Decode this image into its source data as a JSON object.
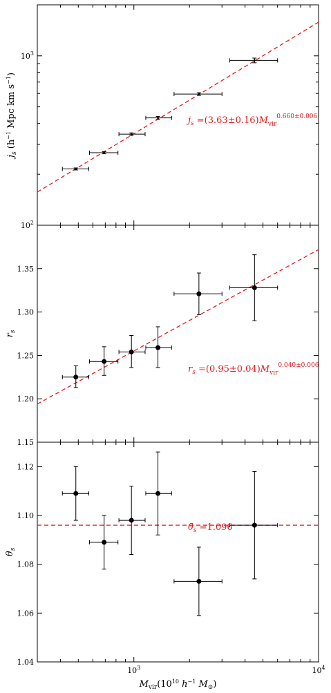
{
  "chart_data": [
    {
      "type": "scatter",
      "panel": "top",
      "xscale": "log",
      "yscale": "log",
      "xlim": [
        300,
        10000
      ],
      "ylim": [
        100,
        2000
      ],
      "ylabel": "j_s (h^{-1} Mpc km s^{-1})",
      "yticks": [
        {
          "v": 100,
          "base": "10",
          "exp": "2"
        },
        {
          "v": 1000,
          "base": "10",
          "exp": "3"
        }
      ],
      "points": [
        {
          "x": 485,
          "y": 215,
          "xlo": 410,
          "xhi": 570,
          "ylo": 212,
          "yhi": 218
        },
        {
          "x": 690,
          "y": 268,
          "xlo": 575,
          "xhi": 820,
          "ylo": 264,
          "yhi": 272
        },
        {
          "x": 970,
          "y": 345,
          "xlo": 830,
          "xhi": 1150,
          "ylo": 339,
          "yhi": 351
        },
        {
          "x": 1350,
          "y": 430,
          "xlo": 1160,
          "xhi": 1600,
          "ylo": 421,
          "yhi": 439
        },
        {
          "x": 2250,
          "y": 595,
          "xlo": 1650,
          "xhi": 3000,
          "ylo": 584,
          "yhi": 606
        },
        {
          "x": 4500,
          "y": 940,
          "xlo": 3300,
          "xhi": 6000,
          "ylo": 910,
          "yhi": 970
        }
      ],
      "fit": {
        "x": [
          300,
          10000
        ],
        "y": [
          157,
          1580
        ],
        "color": "#e41a1c"
      },
      "annotation": "j_s =(3.63±0.16)M_vir^{0.660±0.006}"
    },
    {
      "type": "scatter",
      "panel": "middle",
      "xscale": "log",
      "xlim": [
        300,
        10000
      ],
      "ylim": [
        1.15,
        1.4
      ],
      "ylabel": "r_s",
      "yticks": [
        "1.15",
        "1.20",
        "1.25",
        "1.30",
        "1.35"
      ],
      "points": [
        {
          "x": 485,
          "y": 1.225,
          "xlo": 410,
          "xhi": 570,
          "ylo": 1.213,
          "yhi": 1.238
        },
        {
          "x": 690,
          "y": 1.243,
          "xlo": 575,
          "xhi": 820,
          "ylo": 1.227,
          "yhi": 1.26
        },
        {
          "x": 970,
          "y": 1.254,
          "xlo": 830,
          "xhi": 1150,
          "ylo": 1.236,
          "yhi": 1.273
        },
        {
          "x": 1350,
          "y": 1.259,
          "xlo": 1160,
          "xhi": 1600,
          "ylo": 1.236,
          "yhi": 1.283
        },
        {
          "x": 2250,
          "y": 1.321,
          "xlo": 1650,
          "xhi": 3000,
          "ylo": 1.297,
          "yhi": 1.345
        },
        {
          "x": 4500,
          "y": 1.328,
          "xlo": 3300,
          "xhi": 6000,
          "ylo": 1.29,
          "yhi": 1.366
        }
      ],
      "fit": {
        "x": [
          300,
          10000
        ],
        "y": [
          1.194,
          1.372
        ],
        "color": "#e41a1c"
      },
      "annotation": "r_s =(0.95±0.04)M_vir^{0.040±0.006}"
    },
    {
      "type": "scatter",
      "panel": "bottom",
      "xscale": "log",
      "xlim": [
        300,
        10000
      ],
      "ylim": [
        1.04,
        1.13
      ],
      "ylabel": "θ_s",
      "xlabel": "M_vir(10^{10} h^{-1} M_⊙)",
      "yticks": [
        "1.04",
        "1.06",
        "1.08",
        "1.10",
        "1.12"
      ],
      "xticks": [
        {
          "v": 1000,
          "base": "10",
          "exp": "3"
        },
        {
          "v": 10000,
          "base": "10",
          "exp": "4"
        }
      ],
      "points": [
        {
          "x": 485,
          "y": 1.109,
          "xlo": 410,
          "xhi": 570,
          "ylo": 1.098,
          "yhi": 1.12
        },
        {
          "x": 690,
          "y": 1.089,
          "xlo": 575,
          "xhi": 820,
          "ylo": 1.078,
          "yhi": 1.1
        },
        {
          "x": 970,
          "y": 1.098,
          "xlo": 830,
          "xhi": 1150,
          "ylo": 1.084,
          "yhi": 1.112
        },
        {
          "x": 1350,
          "y": 1.109,
          "xlo": 1160,
          "xhi": 1600,
          "ylo": 1.092,
          "yhi": 1.126
        },
        {
          "x": 2250,
          "y": 1.073,
          "xlo": 1650,
          "xhi": 3000,
          "ylo": 1.059,
          "yhi": 1.087
        },
        {
          "x": 4500,
          "y": 1.096,
          "xlo": 3300,
          "xhi": 6000,
          "ylo": 1.074,
          "yhi": 1.118
        }
      ],
      "hline": {
        "y": 1.096,
        "color": "#e41a1c"
      },
      "annotation": "θ̄_s =1.096"
    }
  ]
}
